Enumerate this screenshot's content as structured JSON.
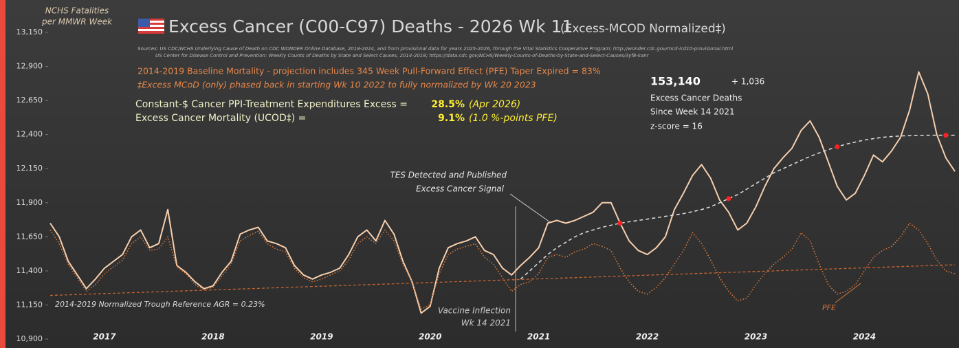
{
  "chart_data": {
    "type": "line",
    "title": "Excess Cancer (C00-C97) Deaths - 2026 Wk 11",
    "subtitle": "(Excess-MCOD  Normalized‡)",
    "y_axis_label": [
      "NCHS Fatalities",
      "per MMWR Week"
    ],
    "sources": [
      "Sources:  US CDC/NCHS Underlying Cause of Death on CDC WONDER Online Database, 2018-2024, and from provisional data for years 2025-2026, through the Vital Statistics Cooperative Program; http://wonder.cdc.gov/mcd-icd10-provisional.html",
      "US Center for Disease Control and Prevention: Weekly  Counts of Deaths by State and Select Causes, 2014-2018; https://data.cdc.gov/NCHS/Weekly-Counts-of-Deaths-by-State-and-Select-Causes/3yf8-kanr"
    ],
    "notes": [
      "2014-2019 Baseline Mortality - projection includes 345 Week Pull-Forward Effect (PFE) Taper Expired =  83%",
      "‡Excess  MCoD (only) phased back in starting  Wk 10 2022 to fully normalized  by Wk 20 2023"
    ],
    "stats": [
      {
        "label": "Constant-$ Cancer PPI-Treatment Expenditures Excess =",
        "value": "28.5%",
        "note": "(Apr 2026)"
      },
      {
        "label": "Excess Cancer Mortality (UCOD‡) =",
        "value": "9.1%",
        "note": "(1.0 %-points PFE)"
      }
    ],
    "summary": {
      "total": "153,140",
      "change": "+ 1,036",
      "lines": [
        "Excess Cancer Deaths",
        "Since Week 14 2021",
        "z-score =  16"
      ]
    },
    "annotations": {
      "tes": [
        "TES Detected and Published",
        "Excess Cancer Signal"
      ],
      "vaccine": [
        "Vaccine Inflection",
        "Wk 14 2021"
      ],
      "pfe": "PFE"
    },
    "categories": [
      null,
      null,
      null,
      null,
      null,
      null,
      "2017",
      null,
      null,
      null,
      null,
      null,
      null,
      null,
      null,
      null,
      null,
      null,
      "2018",
      null,
      null,
      null,
      null,
      null,
      null,
      null,
      null,
      null,
      null,
      null,
      "2019",
      null,
      null,
      null,
      null,
      null,
      null,
      null,
      null,
      null,
      null,
      null,
      "2020",
      null,
      null,
      null,
      null,
      null,
      null,
      null,
      null,
      null,
      null,
      null,
      "2021",
      null,
      null,
      null,
      null,
      null,
      null,
      null,
      null,
      null,
      null,
      null,
      "2022",
      null,
      null,
      null,
      null,
      null,
      null,
      null,
      null,
      null,
      null,
      null,
      "2023",
      null,
      null,
      null,
      null,
      null,
      null,
      null,
      null,
      null,
      null,
      null,
      "2024",
      null,
      null,
      null,
      null,
      null,
      null,
      null,
      null,
      null,
      null
    ],
    "series": [
      {
        "color": "#f6cfae",
        "style": "solid",
        "values": [
          11750,
          11650,
          11470,
          11370,
          11270,
          11340,
          11420,
          11470,
          11520,
          11650,
          11700,
          11570,
          11600,
          11850,
          11440,
          11390,
          11320,
          11270,
          11290,
          11390,
          11470,
          11670,
          11700,
          11720,
          11620,
          11600,
          11570,
          11440,
          11370,
          11340,
          11370,
          11390,
          11420,
          11520,
          11650,
          11700,
          11620,
          11770,
          11670,
          11470,
          11320,
          11090,
          11140,
          11420,
          11570,
          11600,
          11620,
          11650,
          11550,
          11520,
          11420,
          11370,
          11440,
          11500,
          11570,
          11750,
          11770,
          11750,
          11770,
          11800,
          11830,
          11900,
          11900,
          11750,
          11620,
          11550,
          11520,
          11570,
          11650,
          11850,
          11970,
          12100,
          12180,
          12080,
          11920,
          11830,
          11700,
          11750,
          11870,
          12020,
          12150,
          12230,
          12300,
          12430,
          12500,
          12380,
          12200,
          12020,
          11920,
          11970,
          12100,
          12250,
          12200,
          12280,
          12380,
          12580,
          12860,
          12700,
          12400,
          12230,
          12130
        ]
      },
      {
        "name": "PFE",
        "color": "#d9783a",
        "style": "dotted",
        "values": [
          11700,
          11600,
          11450,
          11350,
          11250,
          11300,
          11380,
          11430,
          11480,
          11600,
          11650,
          11550,
          11560,
          11650,
          11430,
          11380,
          11300,
          11260,
          11280,
          11360,
          11450,
          11620,
          11660,
          11690,
          11600,
          11560,
          11540,
          11420,
          11350,
          11320,
          11340,
          11370,
          11400,
          11480,
          11600,
          11650,
          11600,
          11700,
          11620,
          11450,
          11320,
          11120,
          11150,
          11380,
          11520,
          11560,
          11580,
          11600,
          11500,
          11450,
          11350,
          11250,
          11300,
          11320,
          11380,
          11500,
          11520,
          11500,
          11540,
          11560,
          11600,
          11580,
          11550,
          11420,
          11320,
          11250,
          11230,
          11280,
          11350,
          11450,
          11550,
          11680,
          11600,
          11480,
          11350,
          11250,
          11180,
          11200,
          11300,
          11380,
          11450,
          11500,
          11560,
          11680,
          11620,
          11450,
          11300,
          11230,
          11250,
          11300,
          11400,
          11500,
          11550,
          11580,
          11650,
          11750,
          11700,
          11600,
          11480,
          11400,
          11380
        ]
      },
      {
        "color": "#d8d8d8",
        "style": "dashed",
        "values": [
          null,
          null,
          null,
          null,
          null,
          null,
          null,
          null,
          null,
          null,
          null,
          null,
          null,
          null,
          null,
          null,
          null,
          null,
          null,
          null,
          null,
          null,
          null,
          null,
          null,
          null,
          null,
          null,
          null,
          null,
          null,
          null,
          null,
          null,
          null,
          null,
          null,
          null,
          null,
          null,
          null,
          null,
          null,
          null,
          null,
          null,
          null,
          null,
          null,
          null,
          null,
          null,
          11340,
          11400,
          11460,
          11520,
          11570,
          11610,
          11650,
          11680,
          11700,
          11720,
          11735,
          11750,
          11760,
          11770,
          11780,
          11790,
          11800,
          11810,
          11820,
          11835,
          11850,
          11870,
          11900,
          11930,
          11960,
          12000,
          12040,
          12080,
          12120,
          12150,
          12180,
          12210,
          12240,
          12265,
          12290,
          12310,
          12330,
          12345,
          12360,
          12370,
          12380,
          12385,
          12390,
          12392,
          12394,
          12395,
          12395,
          12395,
          12395
        ]
      }
    ],
    "crossings": [
      63,
      75,
      87,
      99
    ],
    "reference_line": {
      "label": "2014-2019 Normalized Trough Reference AGR = 0.23%",
      "color": "#c8642e",
      "values": [
        11220,
        11445
      ]
    },
    "ylim": [
      10900,
      13150
    ],
    "yticks": [
      {
        "value": 10900,
        "label": "10,900"
      },
      {
        "value": 11150,
        "label": "11,150"
      },
      {
        "value": 11400,
        "label": "11,400"
      },
      {
        "value": 11650,
        "label": "11,650"
      },
      {
        "value": 11900,
        "label": "11,900"
      },
      {
        "value": 12150,
        "label": "12,150"
      },
      {
        "value": 12400,
        "label": "12,400"
      },
      {
        "value": 12650,
        "label": "12,650"
      },
      {
        "value": 12900,
        "label": "12,900"
      },
      {
        "value": 13150,
        "label": "13,150"
      }
    ]
  }
}
